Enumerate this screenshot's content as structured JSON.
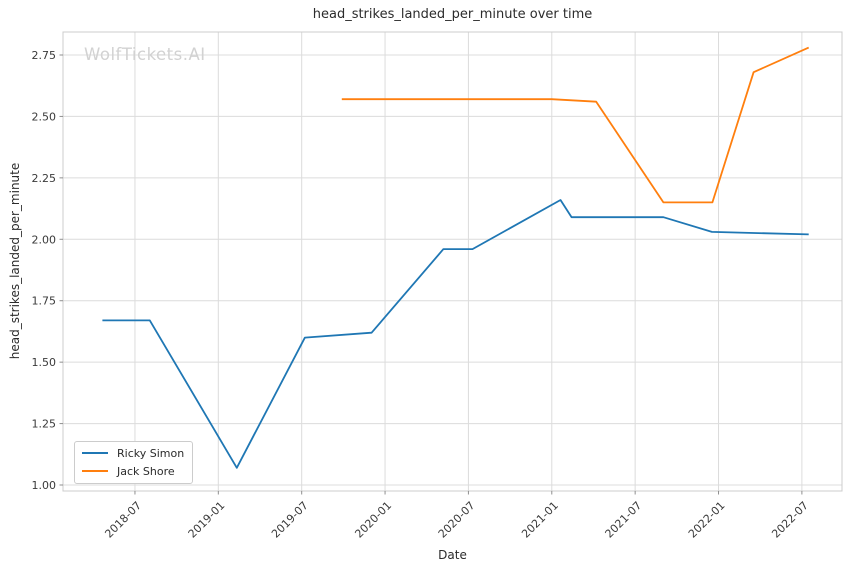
{
  "watermark": "WolfTickets.AI",
  "colors": {
    "background": "#ffffff",
    "grid": "#dcdcdc",
    "spine": "#cccccc",
    "tick": "#8f8f8f",
    "text": "#2b2b2b",
    "tick_label": "#3a3a3a",
    "watermark": "#d2d2d2",
    "series_blue": "#1f77b4",
    "series_orange": "#ff7f0e"
  },
  "chart_data": {
    "type": "line",
    "title": "head_strikes_landed_per_minute over time",
    "xlabel": "Date",
    "ylabel": "head_strikes_landed_per_minute",
    "grid": true,
    "legend_position": "lower left",
    "ylim": [
      0.9756,
      2.8436
    ],
    "xlim": [
      "2018-01-26",
      "2022-09-28"
    ],
    "x_ticks": [
      "2018-07-01",
      "2019-01-01",
      "2019-07-01",
      "2020-01-01",
      "2020-07-01",
      "2021-01-01",
      "2021-07-01",
      "2022-01-01",
      "2022-07-01"
    ],
    "x_tick_labels": [
      "2018-07",
      "2019-01",
      "2019-07",
      "2020-01",
      "2020-07",
      "2021-01",
      "2021-07",
      "2022-01",
      "2022-07"
    ],
    "y_ticks": [
      1.0,
      1.25,
      1.5,
      1.75,
      2.0,
      2.25,
      2.5,
      2.75
    ],
    "y_tick_labels": [
      "1.00",
      "1.25",
      "1.50",
      "1.75",
      "2.00",
      "2.25",
      "2.50",
      "2.75"
    ],
    "series": [
      {
        "name": "Ricky Simon",
        "color": "#1f77b4",
        "points": [
          {
            "date": "2018-04-21",
            "value": 1.67
          },
          {
            "date": "2018-08-03",
            "value": 1.67
          },
          {
            "date": "2019-02-11",
            "value": 1.07
          },
          {
            "date": "2019-07-08",
            "value": 1.6
          },
          {
            "date": "2019-12-02",
            "value": 1.62
          },
          {
            "date": "2020-05-07",
            "value": 1.96
          },
          {
            "date": "2020-07-10",
            "value": 1.96
          },
          {
            "date": "2021-01-20",
            "value": 2.16
          },
          {
            "date": "2021-02-14",
            "value": 2.09
          },
          {
            "date": "2021-09-02",
            "value": 2.09
          },
          {
            "date": "2021-12-17",
            "value": 2.03
          },
          {
            "date": "2022-07-16",
            "value": 2.02
          }
        ]
      },
      {
        "name": "Jack Shore",
        "color": "#ff7f0e",
        "points": [
          {
            "date": "2019-09-28",
            "value": 2.57
          },
          {
            "date": "2021-01-01",
            "value": 2.57
          },
          {
            "date": "2021-04-07",
            "value": 2.56
          },
          {
            "date": "2021-09-02",
            "value": 2.15
          },
          {
            "date": "2021-12-18",
            "value": 2.15
          },
          {
            "date": "2022-03-17",
            "value": 2.68
          },
          {
            "date": "2022-07-16",
            "value": 2.78
          }
        ]
      }
    ]
  }
}
